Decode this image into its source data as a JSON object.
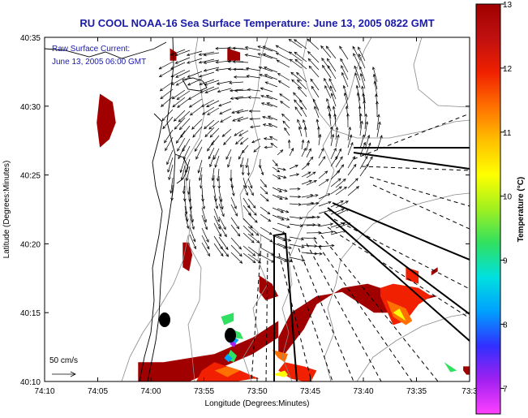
{
  "chart_data": {
    "type": "heatmap",
    "title": "RU COOL  NOAA-16  Sea Surface Temperature:  June 13, 2005 0822 GMT",
    "annotation_lines": [
      "Raw Surface Current:",
      "June 13, 2005 06:00 GMT"
    ],
    "xlabel": "Longitude (Degrees:Minutes)",
    "ylabel": "Latitude (Degrees:Minutes)",
    "x_ticks": [
      "74:10",
      "74:05",
      "74:00",
      "73:55",
      "73:50",
      "73:45",
      "73:40",
      "73:35",
      "73:3"
    ],
    "y_ticks": [
      "40:35",
      "40:30",
      "40:25",
      "40:20",
      "40:15",
      "40:10"
    ],
    "xlim": [
      -74.1667,
      -73.5
    ],
    "ylim": [
      40.1667,
      40.5833
    ],
    "colorbar": {
      "label": "Temperature (°C)",
      "ticks": [
        "13",
        "12",
        "11",
        "10",
        "9",
        "8",
        "7"
      ],
      "range": [
        6.6,
        13
      ],
      "colors": [
        "#ff40ff",
        "#a020f0",
        "#3030ff",
        "#00a0ff",
        "#00e0e0",
        "#30e060",
        "#a0f020",
        "#ffff00",
        "#ffc000",
        "#ff7000",
        "#f02000",
        "#c01010",
        "#a00000"
      ]
    },
    "scale_vector": {
      "label": "50 cm/s",
      "speed_cm_s": 50
    },
    "sst_patches": [
      {
        "t": 12.9,
        "pts": [
          [
            -73.55,
            40.27
          ],
          [
            -73.64,
            40.28
          ],
          [
            -73.66,
            40.285
          ],
          [
            -73.7,
            40.28
          ],
          [
            -73.74,
            40.26
          ],
          [
            -73.76,
            40.23
          ],
          [
            -73.78,
            40.21
          ],
          [
            -73.79,
            40.2
          ],
          [
            -73.8,
            40.2
          ],
          [
            -73.8,
            40.22
          ],
          [
            -73.78,
            40.25
          ],
          [
            -73.74,
            40.27
          ],
          [
            -73.7,
            40.275
          ],
          [
            -73.65,
            40.25
          ],
          [
            -73.62,
            40.25
          ],
          [
            -73.6,
            40.26
          ],
          [
            -73.55,
            40.27
          ]
        ]
      },
      {
        "t": 12.9,
        "pts": [
          [
            -73.8,
            40.22
          ],
          [
            -73.84,
            40.2
          ],
          [
            -73.9,
            40.18
          ],
          [
            -73.96,
            40.16
          ],
          [
            -73.99,
            40.15
          ],
          [
            -74.02,
            40.15
          ],
          [
            -74.02,
            40.19
          ],
          [
            -73.98,
            40.19
          ],
          [
            -73.9,
            40.2
          ],
          [
            -73.84,
            40.22
          ],
          [
            -73.8,
            40.24
          ]
        ]
      },
      {
        "t": 12.9,
        "pts": [
          [
            -74.08,
            40.515
          ],
          [
            -74.06,
            40.505
          ],
          [
            -74.055,
            40.48
          ],
          [
            -74.065,
            40.46
          ],
          [
            -74.08,
            40.45
          ],
          [
            -74.085,
            40.48
          ],
          [
            -74.08,
            40.515
          ]
        ]
      },
      {
        "t": 12.9,
        "pts": [
          [
            -73.97,
            40.57
          ],
          [
            -73.96,
            40.565
          ],
          [
            -73.96,
            40.555
          ],
          [
            -73.97,
            40.555
          ],
          [
            -73.97,
            40.57
          ]
        ]
      },
      {
        "t": 12.9,
        "pts": [
          [
            -73.88,
            40.57
          ],
          [
            -73.86,
            40.565
          ],
          [
            -73.86,
            40.555
          ],
          [
            -73.88,
            40.555
          ],
          [
            -73.88,
            40.57
          ]
        ]
      },
      {
        "t": 12.9,
        "pts": [
          [
            -73.83,
            40.295
          ],
          [
            -73.81,
            40.285
          ],
          [
            -73.8,
            40.27
          ],
          [
            -73.82,
            40.265
          ],
          [
            -73.83,
            40.275
          ],
          [
            -73.83,
            40.295
          ]
        ]
      },
      {
        "t": 12.9,
        "pts": [
          [
            -73.94,
            40.335
          ],
          [
            -73.935,
            40.32
          ],
          [
            -73.94,
            40.3
          ],
          [
            -73.95,
            40.305
          ],
          [
            -73.95,
            40.335
          ]
        ]
      },
      {
        "t": 12.9,
        "pts": [
          [
            -73.55,
            40.305
          ],
          [
            -73.56,
            40.3
          ],
          [
            -73.56,
            40.295
          ],
          [
            -73.55,
            40.3
          ]
        ]
      },
      {
        "t": 12.9,
        "pts": [
          [
            -73.51,
            40.18
          ],
          [
            -73.505,
            40.175
          ],
          [
            -73.5,
            40.175
          ],
          [
            -73.5,
            40.185
          ],
          [
            -73.51,
            40.185
          ]
        ]
      },
      {
        "t": 12.2,
        "pts": [
          [
            -73.64,
            40.28
          ],
          [
            -73.62,
            40.285
          ],
          [
            -73.58,
            40.28
          ],
          [
            -73.56,
            40.27
          ],
          [
            -73.58,
            40.26
          ],
          [
            -73.6,
            40.24
          ],
          [
            -73.62,
            40.235
          ],
          [
            -73.64,
            40.27
          ],
          [
            -73.64,
            40.28
          ]
        ]
      },
      {
        "t": 12.2,
        "pts": [
          [
            -73.83,
            40.17
          ],
          [
            -73.86,
            40.18
          ],
          [
            -73.9,
            40.19
          ],
          [
            -73.92,
            40.18
          ],
          [
            -73.93,
            40.165
          ],
          [
            -73.88,
            40.165
          ],
          [
            -73.84,
            40.17
          ],
          [
            -73.83,
            40.17
          ]
        ]
      },
      {
        "t": 12.2,
        "pts": [
          [
            -73.74,
            40.18
          ],
          [
            -73.76,
            40.185
          ],
          [
            -73.79,
            40.19
          ],
          [
            -73.8,
            40.18
          ],
          [
            -73.78,
            40.17
          ],
          [
            -73.75,
            40.165
          ],
          [
            -73.74,
            40.18
          ]
        ]
      },
      {
        "t": 12.2,
        "pts": [
          [
            -73.58,
            40.3
          ],
          [
            -73.6,
            40.305
          ],
          [
            -73.6,
            40.29
          ],
          [
            -73.58,
            40.285
          ]
        ]
      },
      {
        "t": 11.2,
        "pts": [
          [
            -73.63,
            40.265
          ],
          [
            -73.6,
            40.255
          ],
          [
            -73.59,
            40.24
          ],
          [
            -73.6,
            40.235
          ],
          [
            -73.62,
            40.245
          ],
          [
            -73.63,
            40.265
          ]
        ]
      },
      {
        "t": 11.2,
        "pts": [
          [
            -73.81,
            40.205
          ],
          [
            -73.8,
            40.195
          ],
          [
            -73.79,
            40.19
          ],
          [
            -73.785,
            40.2
          ],
          [
            -73.81,
            40.205
          ]
        ]
      },
      {
        "t": 11.2,
        "pts": [
          [
            -73.86,
            40.18
          ],
          [
            -73.88,
            40.185
          ],
          [
            -73.9,
            40.18
          ],
          [
            -73.88,
            40.172
          ],
          [
            -73.86,
            40.18
          ]
        ]
      },
      {
        "t": 10.2,
        "pts": [
          [
            -73.62,
            40.25
          ],
          [
            -73.61,
            40.245
          ],
          [
            -73.6,
            40.24
          ],
          [
            -73.61,
            40.255
          ],
          [
            -73.62,
            40.25
          ]
        ]
      },
      {
        "t": 10.2,
        "pts": [
          [
            -73.81,
            40.175
          ],
          [
            -73.79,
            40.18
          ],
          [
            -73.785,
            40.175
          ],
          [
            -73.79,
            40.172
          ],
          [
            -73.81,
            40.175
          ]
        ]
      },
      {
        "t": 9.2,
        "pts": [
          [
            -73.87,
            40.25
          ],
          [
            -73.89,
            40.245
          ],
          [
            -73.885,
            40.235
          ],
          [
            -73.87,
            40.24
          ]
        ]
      },
      {
        "t": 9.2,
        "pts": [
          [
            -73.54,
            40.19
          ],
          [
            -73.53,
            40.185
          ],
          [
            -73.52,
            40.18
          ],
          [
            -73.53,
            40.178
          ],
          [
            -73.54,
            40.19
          ]
        ]
      },
      {
        "t": 9.0,
        "pts": [
          [
            -73.88,
            40.232
          ],
          [
            -73.86,
            40.226
          ],
          [
            -73.855,
            40.218
          ],
          [
            -73.875,
            40.22
          ],
          [
            -73.88,
            40.232
          ]
        ]
      },
      {
        "t": 9.0,
        "pts": [
          [
            -73.875,
            40.205
          ],
          [
            -73.865,
            40.198
          ],
          [
            -73.87,
            40.19
          ],
          [
            -73.882,
            40.194
          ],
          [
            -73.875,
            40.205
          ]
        ]
      },
      {
        "t": 8.3,
        "pts": [
          [
            -73.875,
            40.222
          ],
          [
            -73.862,
            40.217
          ],
          [
            -73.87,
            40.21
          ],
          [
            -73.88,
            40.215
          ],
          [
            -73.875,
            40.222
          ]
        ]
      },
      {
        "t": 8.0,
        "pts": [
          [
            -73.88,
            40.2
          ],
          [
            -73.872,
            40.195
          ],
          [
            -73.878,
            40.19
          ],
          [
            -73.885,
            40.195
          ],
          [
            -73.88,
            40.2
          ]
        ]
      },
      {
        "t": 6.9,
        "pts": [
          [
            -73.872,
            40.216
          ],
          [
            -73.866,
            40.212
          ],
          [
            -73.87,
            40.208
          ],
          [
            -73.876,
            40.212
          ],
          [
            -73.872,
            40.216
          ]
        ]
      }
    ]
  }
}
